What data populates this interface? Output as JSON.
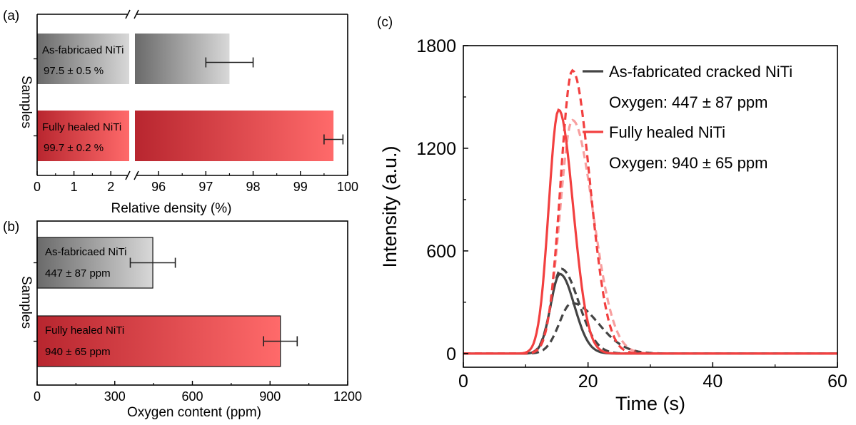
{
  "figure": {
    "panel_labels": [
      "(a)",
      "(b)",
      "(c)"
    ]
  },
  "chart_data": [
    {
      "panel": "(a)",
      "type": "bar",
      "orientation": "horizontal",
      "xlabel": "Relative density (%)",
      "ylabel": "Samples",
      "broken_axis": true,
      "xlim_segments": [
        [
          0,
          2.5
        ],
        [
          95.5,
          100
        ]
      ],
      "xticks_first_segment": [
        "0",
        "1",
        "2"
      ],
      "xticks_second_segment": [
        "96",
        "97",
        "98",
        "99",
        "100"
      ],
      "categories": [
        "As-fabricaed NiTi",
        "Fully healed NiTi"
      ],
      "values": [
        97.5,
        99.7
      ],
      "errors": [
        0.5,
        0.2
      ],
      "value_labels": [
        "97.5 ± 0.5 %",
        "99.7 ± 0.2 %"
      ],
      "colors": [
        "#555555",
        "#ff5555"
      ],
      "gradient_starts": [
        "#6a6a6a",
        "#b8262f"
      ],
      "gradient_ends": [
        "#d8d8d8",
        "#ff6a6a"
      ]
    },
    {
      "panel": "(b)",
      "type": "bar",
      "orientation": "horizontal",
      "xlabel": "Oxygen content (ppm)",
      "ylabel": "Samples",
      "xlim": [
        0,
        1200
      ],
      "xticks": [
        "0",
        "300",
        "600",
        "900",
        "1200"
      ],
      "categories": [
        "As-fabricaed NiTi",
        "Fully healed NiTi"
      ],
      "values": [
        447,
        940
      ],
      "errors": [
        87,
        65
      ],
      "value_labels": [
        "447 ± 87 ppm",
        "940 ± 65 ppm"
      ],
      "gradient_starts": [
        "#6a6a6a",
        "#b8262f"
      ],
      "gradient_ends": [
        "#d8d8d8",
        "#ff6a6a"
      ]
    },
    {
      "panel": "(c)",
      "type": "line",
      "xlabel": "Time (s)",
      "ylabel": "Intensity (a.u.)",
      "xlim": [
        0,
        60
      ],
      "ylim": [
        -80,
        1800
      ],
      "xticks": [
        "0",
        "20",
        "40",
        "60"
      ],
      "yticks": [
        "0",
        "600",
        "1200",
        "1800"
      ],
      "legend": [
        {
          "label": "As-fabricated cracked NiTi",
          "sub": "Oxygen: 447 ± 87 ppm",
          "color": "#444444"
        },
        {
          "label": "Fully healed NiTi",
          "sub": "Oxygen: 940 ± 65 ppm",
          "color": "#f24040"
        }
      ],
      "series": [
        {
          "group": 0,
          "style": "solid",
          "color": "#444444",
          "opacity": 1,
          "peak": 465,
          "center": 15.5,
          "sigma_left": 1.5,
          "sigma_right": 2.3
        },
        {
          "group": 0,
          "style": "dashed",
          "color": "#444444",
          "opacity": 1,
          "peak": 495,
          "center": 15.7,
          "sigma_left": 1.6,
          "sigma_right": 2.8
        },
        {
          "group": 0,
          "style": "dashed",
          "color": "#444444",
          "opacity": 1,
          "peak": 295,
          "center": 17.4,
          "sigma_left": 2.0,
          "sigma_right": 4.2
        },
        {
          "group": 1,
          "style": "solid",
          "color": "#f24040",
          "opacity": 1,
          "peak": 1425,
          "center": 15.3,
          "sigma_left": 1.6,
          "sigma_right": 2.3
        },
        {
          "group": 1,
          "style": "dashed",
          "color": "#f24040",
          "opacity": 1,
          "peak": 1655,
          "center": 17.5,
          "sigma_left": 1.9,
          "sigma_right": 2.8
        },
        {
          "group": 1,
          "style": "dashed",
          "color": "#f24040",
          "opacity": 0.5,
          "peak": 1365,
          "center": 17.5,
          "sigma_left": 2.0,
          "sigma_right": 3.3
        }
      ]
    }
  ]
}
